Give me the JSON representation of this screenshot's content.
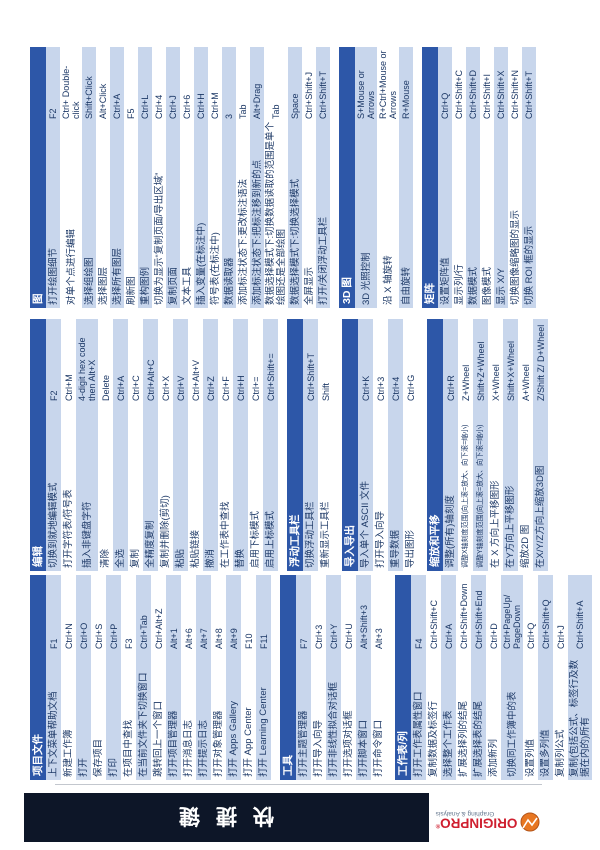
{
  "banner": {
    "title": "快捷键"
  },
  "logo": {
    "brand": "ORIGINPRO",
    "reg": "®",
    "tagline": "Graphing & Analysis"
  },
  "colors": {
    "header_bar": "#2d57a8",
    "row_alt": "#c8d6ec",
    "banner_bg": "#0d1628",
    "text": "#1c3866",
    "brand_red": "#cf1f2f",
    "icon_orange": "#e87722"
  },
  "columns": [
    {
      "tables": [
        {
          "title": "项目文件",
          "rows": [
            {
              "label": "上下文菜单帮助文档",
              "key": "F1"
            },
            {
              "label": "新建工作簿",
              "key": "Ctrl+N"
            },
            {
              "label": "打开",
              "key": "Ctrl+O"
            },
            {
              "label": "保存项目",
              "key": "Ctrl+S"
            },
            {
              "label": "打印",
              "key": "Ctrl+P"
            },
            {
              "label": "在项目中查找",
              "key": "F3"
            },
            {
              "label": "在当前文件夹下切换窗口",
              "key": "Ctrl+Tab"
            },
            {
              "label": "跳转回上一个窗口",
              "key": "Ctrl+Alt+Z"
            },
            {
              "label": "打开项目管理器",
              "key": "Alt+1"
            },
            {
              "label": "打开消息日志",
              "key": "Alt+6"
            },
            {
              "label": "打开提示日志",
              "key": "Alt+7"
            },
            {
              "label": "打开对象管理器",
              "key": "Alt+8"
            },
            {
              "label": "打开 Apps Gallery",
              "key": "Alt+9"
            },
            {
              "label": "打开 App Center",
              "key": "F10"
            },
            {
              "label": "打开 Learning Center",
              "key": "F11"
            }
          ]
        },
        {
          "title": "工具",
          "rows": [
            {
              "label": "打开主题管理器",
              "key": "F7"
            },
            {
              "label": "打开导入向导",
              "key": "Ctrl+3"
            },
            {
              "label": "打开非线性拟合对话框",
              "key": "Ctrl+Y"
            },
            {
              "label": "打开选项对话框",
              "key": "Ctrl+U"
            },
            {
              "label": "打开脚本窗口",
              "key": "Alt+Shift+3"
            },
            {
              "label": "打开命令窗口",
              "key": "Alt+3"
            }
          ]
        },
        {
          "title": "工作表/列",
          "rows": [
            {
              "label": "打开工作表属性窗口",
              "key": "F4"
            },
            {
              "label": "复制数据及标签行",
              "key": "Ctrl+Shift+C"
            },
            {
              "label": "选择整个工作表",
              "key": "Ctrl+A"
            },
            {
              "label": "扩展选择列的结尾",
              "key": "Ctrl+Shift+Down"
            },
            {
              "label": "扩展选择表的结尾",
              "key": "Ctrl+Shift+End"
            },
            {
              "label": "添加新列",
              "key": "Ctrl+D"
            },
            {
              "label": "切换同工作簿中的表",
              "key": "Ctrl+PageUp/ PageDown"
            },
            {
              "label": "设置列值",
              "key": "Ctrl+Q"
            },
            {
              "label": "设置多列值",
              "key": "Ctrl+Shift+Q"
            },
            {
              "label": "复制列公式",
              "key": "Ctrl+J"
            },
            {
              "label": "复制(包括公式、标签行及数据在内的)所有",
              "key": "Ctrl+Shift+A"
            }
          ]
        }
      ]
    },
    {
      "tables": [
        {
          "title": "编辑",
          "rows": [
            {
              "label": "切换到就地编辑模式",
              "key": "F2"
            },
            {
              "label": "打开字符表/符号表",
              "key": "Ctrl+M"
            },
            {
              "label": "插入非键盘字符",
              "key": "4-digit hex code then Alt+X"
            },
            {
              "label": "清除",
              "key": "Delete"
            },
            {
              "label": "全选",
              "key": "Ctrl+A"
            },
            {
              "label": "复制",
              "key": "Ctrl+C"
            },
            {
              "label": "全精度复制",
              "key": "Ctrl+Alt+C"
            },
            {
              "label": "复制并删除(剪切)",
              "key": "Ctrl+X"
            },
            {
              "label": "粘贴",
              "key": "Ctrl+V"
            },
            {
              "label": "粘贴链接",
              "key": "Ctrl+Alt+V"
            },
            {
              "label": "撤消",
              "key": "Ctrl+Z"
            },
            {
              "label": "在工作表中查找",
              "key": "Ctrl+F"
            },
            {
              "label": "替换",
              "key": "Ctrl+H"
            },
            {
              "label": "启用下标模式",
              "key": "Ctrl+="
            },
            {
              "label": "启用上标模式",
              "key": "Ctrl+Shift+="
            }
          ]
        },
        {
          "title": "浮动工具栏",
          "rows": [
            {
              "label": "切换浮动工具栏",
              "key": "Ctrl+Shift+T"
            },
            {
              "label": "重新显示工具栏",
              "key": "Shift"
            }
          ]
        },
        {
          "title": "导入导出",
          "rows": [
            {
              "label": "导入单个 ASCII 文件",
              "key": "Ctrl+K"
            },
            {
              "label": "打开导入向导",
              "key": "Ctrl+3"
            },
            {
              "label": "重导数据",
              "key": "Ctrl+4"
            },
            {
              "label": "导出图形",
              "key": "Ctrl+G"
            }
          ]
        },
        {
          "title": "缩放和平移",
          "rows": [
            {
              "label": "调整(所有)轴刻度",
              "key": "Ctrl+R"
            },
            {
              "label": "调整X轴刻度范围(向上滚=放大、向下滚=缩小)",
              "key": "Z+Wheel",
              "small": true
            },
            {
              "label": "调整Y轴刻度范围(向上滚=放大、向下滚=缩小)",
              "key": "Shift+Z+Wheel",
              "small": true
            },
            {
              "label": "在 X 方向上平移图形",
              "key": "X+Wheel"
            },
            {
              "label": "在Y方向上平移图形",
              "key": "Shift+X+Wheel"
            },
            {
              "label": "缩放2D 图",
              "key": "A+Wheel"
            },
            {
              "label": "在X/Y/Z方向上缩放3D图",
              "key": "Z/Shift Z/ D+Wheel"
            }
          ]
        }
      ]
    },
    {
      "tables": [
        {
          "title": "图",
          "rows": [
            {
              "label": "打开绘图细节",
              "key": "F2"
            },
            {
              "label": "对单个点进行编辑",
              "key": "Ctrl+ Double-click"
            },
            {
              "label": "选择组绘图",
              "key": "Shift+Click"
            },
            {
              "label": "选择图层",
              "key": "Alt+Click"
            },
            {
              "label": "选择所有图层",
              "key": "Ctrl+A"
            },
            {
              "label": "刷新图",
              "key": "F5"
            },
            {
              "label": "重构图例",
              "key": "Ctrl+L"
            },
            {
              "label": "切换为显示“复制页面/导出区域”",
              "key": "Ctrl+4"
            },
            {
              "label": "复制页面",
              "key": "Ctrl+J"
            },
            {
              "label": "文本工具",
              "key": "Ctrl+6"
            },
            {
              "label": "插入变量(在标注中)",
              "key": "Ctrl+H"
            },
            {
              "label": "符号表(在标注中)",
              "key": "Ctrl+M"
            },
            {
              "label": "数据读取器",
              "key": "3"
            },
            {
              "label": "添加标注状态下:更改标注语法",
              "key": "Tab"
            },
            {
              "label": "添加标注状态下:把标注移到新的点",
              "key": "Alt+Drag"
            },
            {
              "label": "数据选择模式下:切换数据读取的范围是单个绘图还是全部绘图",
              "key": "Tab"
            },
            {
              "label": "数据选择模式下:切换选择模式",
              "key": "Space"
            },
            {
              "label": "全屏显示",
              "key": "Ctrl+Shift+J"
            },
            {
              "label": "打开/关闭浮动工具栏",
              "key": "Ctrl+Shift+T"
            }
          ]
        },
        {
          "title": "3D 图",
          "rows": [
            {
              "label": "3D 光照控制",
              "key": "S+Mouse or Arrows"
            },
            {
              "label": "沿 X 轴旋转",
              "key": "R+Ctrl+Mouse or Arrows"
            },
            {
              "label": "自由旋转",
              "key": "R+Mouse"
            }
          ]
        },
        {
          "title": "矩阵",
          "rows": [
            {
              "label": "设置矩阵值",
              "key": "Ctrl+Q"
            },
            {
              "label": "显示列/行",
              "key": "Ctrl+Shift+C"
            },
            {
              "label": "数据模式",
              "key": "Ctrl+Shift+D"
            },
            {
              "label": "图像模式",
              "key": "Ctrl+Shift+I"
            },
            {
              "label": "显示 X/Y",
              "key": "Ctrl+Shift+X"
            },
            {
              "label": "切换图像缩略图的显示",
              "key": "Ctrl+Shift+N"
            },
            {
              "label": "切换 ROI 框的显示",
              "key": "Ctrl+Shift+T"
            }
          ]
        }
      ]
    }
  ]
}
